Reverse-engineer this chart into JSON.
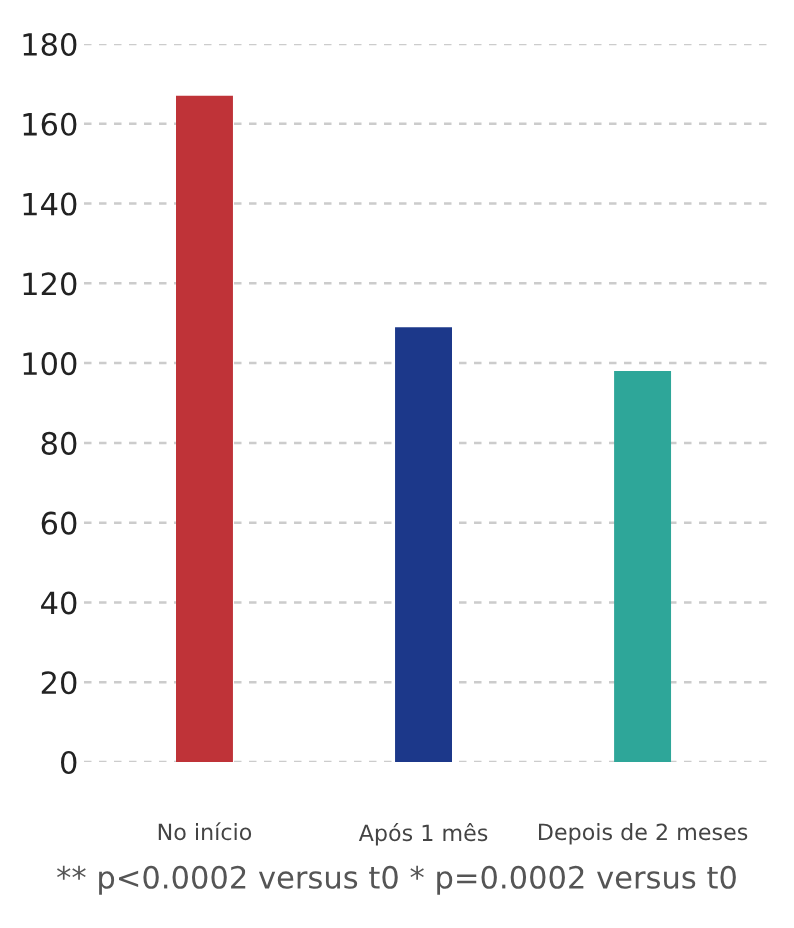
{
  "chart_data": {
    "type": "bar",
    "categories": [
      "No início",
      "Após 1 mês",
      "Depois de 2 meses"
    ],
    "values": [
      167,
      109,
      98
    ],
    "colors": [
      "#bf3338",
      "#1c388a",
      "#2ea699"
    ],
    "ylim": [
      0,
      180
    ],
    "yticks": [
      0,
      20,
      40,
      60,
      80,
      100,
      120,
      140,
      160,
      180
    ],
    "grid": "y",
    "annotations": [
      "** p<0.0002 versus t0 * p=0.0002 versus t0"
    ]
  }
}
